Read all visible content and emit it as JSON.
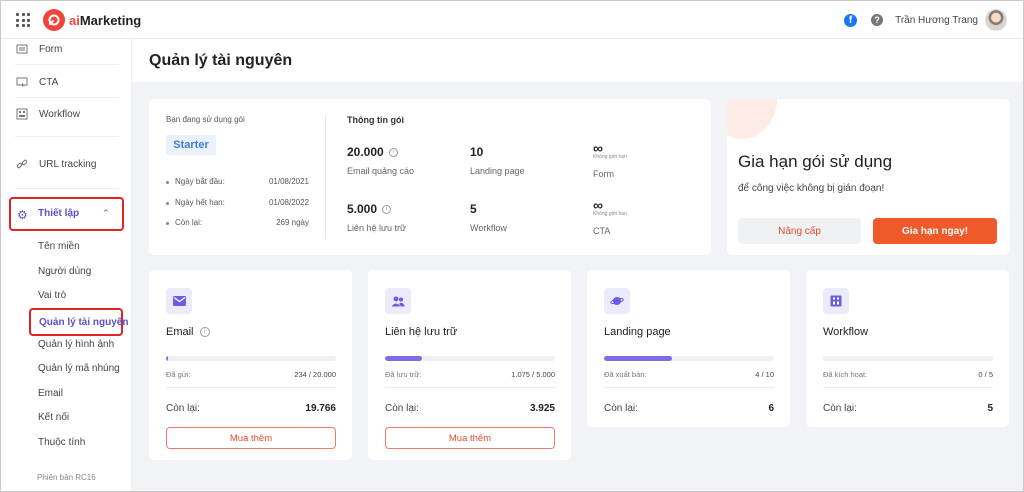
{
  "header": {
    "logo_text": "aiMarketing",
    "facebook_icon": "f",
    "help_icon": "?",
    "username": "Trần Hương Trang"
  },
  "sidebar": {
    "items": [
      {
        "label": "Form",
        "icon": "form-icon"
      },
      {
        "label": "CTA",
        "icon": "cta-icon"
      },
      {
        "label": "Workflow",
        "icon": "workflow-icon"
      },
      {
        "label": "URL tracking",
        "icon": "link-icon"
      }
    ],
    "setup_label": "Thiết lập",
    "setup_chevron": "⌃",
    "sub_items": [
      "Tên miền",
      "Người dùng",
      "Vai trò",
      "Quản lý tài nguyên",
      "Quản lý hình ảnh",
      "Quản lý mã nhúng",
      "Email",
      "Kết nối",
      "Thuộc tính"
    ],
    "active_sub": "Quản lý tài nguyên",
    "version": "Phiên bản RC16"
  },
  "main": {
    "page_title": "Quản lý tài nguyên",
    "package": {
      "label": "Bạn đang sử dụng gói",
      "name": "Starter",
      "rows": [
        {
          "key": "Ngày bắt đầu:",
          "value": "01/08/2021"
        },
        {
          "key": "Ngày hết hạn:",
          "value": "01/08/2022"
        },
        {
          "key": "Còn lại:",
          "value": "269 ngày"
        }
      ],
      "info_title": "Thông tin gói",
      "info_icon": "i",
      "quotas": [
        {
          "value": "20.000",
          "name": "Email quảng cáo",
          "info": true
        },
        {
          "value": "10",
          "name": "Landing page"
        },
        {
          "value": "∞",
          "caption": "Không giới hạn",
          "name": "Form"
        },
        {
          "value": "5.000",
          "name": "Liên hệ lưu trữ",
          "info": true
        },
        {
          "value": "5",
          "name": "Workflow"
        },
        {
          "value": "∞",
          "caption": "Không giới hạn",
          "name": "CTA"
        }
      ]
    },
    "renew": {
      "title": "Gia hạn gói sử dụng",
      "subtitle": "để công việc không bị gián đoạn!",
      "upgrade_label": "Nâng cấp",
      "renew_label": "Gia hạn ngay!"
    },
    "resources": [
      {
        "title": "Email",
        "icon": "mail-icon",
        "info": true,
        "used_label": "Đã gửi:",
        "used_value": "234 / 20.000",
        "progress": 0.0117,
        "remaining_label": "Còn lại:",
        "remaining_value": "19.766",
        "buy_label": "Mua thêm"
      },
      {
        "title": "Liên hệ lưu trữ",
        "icon": "contacts-icon",
        "used_label": "Đã lưu trữ:",
        "used_value": "1.075 / 5.000",
        "progress": 0.215,
        "remaining_label": "Còn lại:",
        "remaining_value": "3.925",
        "buy_label": "Mua thêm"
      },
      {
        "title": "Landing page",
        "icon": "planet-icon",
        "used_label": "Đã xuất bản:",
        "used_value": "4 / 10",
        "progress": 0.4,
        "remaining_label": "Còn lại:",
        "remaining_value": "6"
      },
      {
        "title": "Workflow",
        "icon": "workflow-icon",
        "used_label": "Đã kích hoạt:",
        "used_value": "0 / 5",
        "progress": 0,
        "remaining_label": "Còn lại:",
        "remaining_value": "5"
      }
    ],
    "colors": {
      "accent": "#5b4fcf",
      "brand": "#f05a2a",
      "progress": "#7c6ee6"
    }
  }
}
